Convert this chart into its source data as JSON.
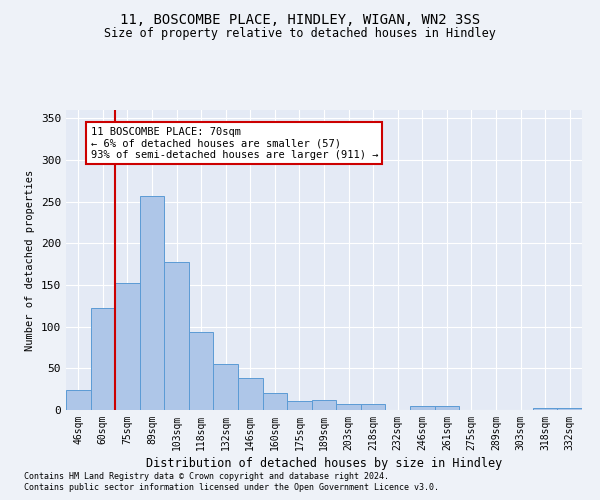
{
  "title1": "11, BOSCOMBE PLACE, HINDLEY, WIGAN, WN2 3SS",
  "title2": "Size of property relative to detached houses in Hindley",
  "xlabel": "Distribution of detached houses by size in Hindley",
  "ylabel": "Number of detached properties",
  "bar_labels": [
    "46sqm",
    "60sqm",
    "75sqm",
    "89sqm",
    "103sqm",
    "118sqm",
    "132sqm",
    "146sqm",
    "160sqm",
    "175sqm",
    "189sqm",
    "203sqm",
    "218sqm",
    "232sqm",
    "246sqm",
    "261sqm",
    "275sqm",
    "289sqm",
    "303sqm",
    "318sqm",
    "332sqm"
  ],
  "bar_values": [
    24,
    122,
    152,
    257,
    178,
    94,
    55,
    38,
    20,
    11,
    12,
    7,
    7,
    0,
    5,
    5,
    0,
    0,
    0,
    2,
    2
  ],
  "bar_color": "#aec6e8",
  "bar_edge_color": "#5b9bd5",
  "vline_color": "#cc0000",
  "vline_x_index": 1.5,
  "annotation_text": "11 BOSCOMBE PLACE: 70sqm\n← 6% of detached houses are smaller (57)\n93% of semi-detached houses are larger (911) →",
  "annotation_box_color": "#ffffff",
  "annotation_box_edge": "#cc0000",
  "ylim": [
    0,
    360
  ],
  "yticks": [
    0,
    50,
    100,
    150,
    200,
    250,
    300,
    350
  ],
  "footnote1": "Contains HM Land Registry data © Crown copyright and database right 2024.",
  "footnote2": "Contains public sector information licensed under the Open Government Licence v3.0.",
  "bg_color": "#eef2f8",
  "plot_bg_color": "#e4eaf5"
}
